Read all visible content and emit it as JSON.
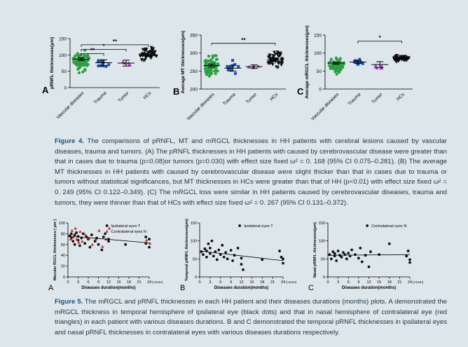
{
  "figure4": {
    "panels": [
      {
        "letter": "A",
        "ylabel": "pRNFL thicknesses(μm)",
        "ylim": [
          0,
          150
        ],
        "yticks": [
          "0",
          "50",
          "100",
          "150"
        ],
        "groups": [
          "Vascular diseases",
          "Trauma",
          "Tumor",
          "HCs"
        ],
        "colors": [
          "#2e9e46",
          "#1a4fa8",
          "#a02fc0",
          "#111111"
        ],
        "means": [
          87,
          76,
          75,
          98
        ],
        "sem": [
          4,
          9,
          9,
          3
        ],
        "counts": [
          70,
          12,
          5,
          50
        ],
        "spread": [
          [
            40,
            125
          ],
          [
            45,
            105
          ],
          [
            62,
            88
          ],
          [
            72,
            135
          ]
        ],
        "sig": [
          {
            "from": 0,
            "to": 3,
            "label": "**",
            "y": 131
          },
          {
            "from": 0,
            "to": 2,
            "label": "*",
            "y": 117
          },
          {
            "from": 0,
            "to": 1,
            "label": "**",
            "y": 104
          }
        ]
      },
      {
        "letter": "B",
        "ylabel": "Average MT thicknesses(μm)",
        "ylim": [
          200,
          350
        ],
        "yticks": [
          "200",
          "250",
          "300",
          "350"
        ],
        "groups": [
          "Vascular diseases",
          "Trauma",
          "Tumor",
          "HCs"
        ],
        "colors": [
          "#2e9e46",
          "#1a4fa8",
          "#a02fc0",
          "#111111"
        ],
        "means": [
          265,
          258,
          262,
          281
        ],
        "sem": [
          4,
          8,
          5,
          3
        ],
        "counts": [
          70,
          12,
          6,
          55
        ],
        "spread": [
          [
            225,
            305
          ],
          [
            235,
            285
          ],
          [
            255,
            270
          ],
          [
            250,
            318
          ]
        ],
        "sig": [
          {
            "from": 0,
            "to": 3,
            "label": "**",
            "y": 327
          }
        ]
      },
      {
        "letter": "C",
        "ylabel": "Average mRGCL thicknesses(μm)",
        "ylim": [
          0,
          150
        ],
        "yticks": [
          "0",
          "50",
          "100",
          "150"
        ],
        "groups": [
          "Vascular diseases",
          "Trauma",
          "Tumor",
          "HCs"
        ],
        "colors": [
          "#2e9e46",
          "#1a4fa8",
          "#a02fc0",
          "#111111"
        ],
        "means": [
          72,
          75,
          68,
          85
        ],
        "sem": [
          3,
          4,
          8,
          2
        ],
        "counts": [
          70,
          12,
          6,
          50
        ],
        "spread": [
          [
            35,
            95
          ],
          [
            60,
            88
          ],
          [
            45,
            82
          ],
          [
            72,
            98
          ]
        ],
        "sig": [
          {
            "from": 1,
            "to": 3,
            "label": "*",
            "y": 133
          }
        ]
      }
    ],
    "caption_label": "Figure 4.",
    "caption_text": "The comparisons of pRNFL, MT and mRGCL thicknesses in HH patients with cerebral lesions caused by vascular diseases, trauma and tumors. (A) The pRNFL thicknesses in HH patients with caused by cerebrovascular disease were greater than that in cases due to trauma (p=0.08)or tumors (p=0.030) with effect size fixed ω² = 0. 168 (95% CI 0.075–0.281). (B) The average MT thicknesses in HH patients with caused by cerebrovascular disease were slight thicker than that in cases due to trauma or tumors without statistical significances, but MT thicknesses in HCs were greater than that of HH (p<0.01) with effect size fixed ω² = 0. 249 (95% CI 0.122–0.349). (C) The mRGCL loss were similar in HH patients caused by cerebrovascular diseases, trauma and tumors, they were thinner than that of HCs with effect size fixed ω² = 0. 267 (95% CI 0.131–0.372)."
  },
  "figure5": {
    "xticks": [
      "0",
      "3",
      "6",
      "9",
      "12",
      "15",
      "18",
      "21",
      "24"
    ],
    "xtick_extra": "(>24m)",
    "xlabel": "Diseases duration(months)",
    "panels": [
      {
        "letter": "A",
        "ylabel": "Macular RGCL thicknesses ( μm )",
        "ylim": [
          0,
          100
        ],
        "yticks": [
          "0",
          "20",
          "40",
          "60",
          "80",
          "100"
        ],
        "legend": [
          "Ipsilateral eyes T",
          "Contralateral eyes N"
        ],
        "series": [
          {
            "name": "Ipsilateral eyes T",
            "color": "#111111",
            "marker": "dot",
            "points": [
              [
                0.5,
                76
              ],
              [
                1,
                72
              ],
              [
                1,
                80
              ],
              [
                1.5,
                66
              ],
              [
                2,
                78
              ],
              [
                2,
                60
              ],
              [
                2.5,
                82
              ],
              [
                3,
                75
              ],
              [
                3,
                68
              ],
              [
                3.5,
                58
              ],
              [
                4,
                72
              ],
              [
                4.5,
                80
              ],
              [
                5,
                62
              ],
              [
                5.5,
                74
              ],
              [
                6,
                70
              ],
              [
                6.5,
                55
              ],
              [
                7,
                78
              ],
              [
                8,
                66
              ],
              [
                8.5,
                72
              ],
              [
                9,
                60
              ],
              [
                10,
                50
              ],
              [
                10.5,
                74
              ],
              [
                11,
                80
              ],
              [
                12,
                70
              ],
              [
                12,
                66
              ],
              [
                17,
                60
              ],
              [
                23,
                74
              ],
              [
                23,
                62
              ],
              [
                24,
                55
              ],
              [
                24,
                70
              ]
            ]
          },
          {
            "name": "Contralateral eyes N",
            "color": "#c0282a",
            "marker": "tri",
            "points": [
              [
                0.8,
                70
              ],
              [
                1.2,
                86
              ],
              [
                1.6,
                74
              ],
              [
                2.2,
                90
              ],
              [
                2.6,
                70
              ],
              [
                3.2,
                64
              ],
              [
                3.6,
                84
              ],
              [
                4.2,
                66
              ],
              [
                5.2,
                78
              ],
              [
                6.2,
                72
              ],
              [
                7.2,
                60
              ],
              [
                8.2,
                70
              ],
              [
                9.2,
                86
              ],
              [
                10.2,
                56
              ],
              [
                11.2,
                70
              ],
              [
                12.2,
                90
              ],
              [
                23.2,
                68
              ],
              [
                24.2,
                62
              ]
            ]
          }
        ],
        "trend": [
          [
            0,
            76
          ],
          [
            24,
            63
          ]
        ]
      },
      {
        "letter": "B",
        "ylabel": "Temporal pRNFL thicknesses(μm)",
        "ylim": [
          0,
          150
        ],
        "yticks": [
          "0",
          "50",
          "100",
          "150"
        ],
        "legend": [
          "Ipsilateral eyes T"
        ],
        "series": [
          {
            "name": "Ipsilateral eyes T",
            "color": "#111111",
            "marker": "dot",
            "points": [
              [
                0.5,
                70
              ],
              [
                1,
                62
              ],
              [
                1.5,
                78
              ],
              [
                2,
                55
              ],
              [
                2,
                72
              ],
              [
                2.5,
                92
              ],
              [
                3,
                80
              ],
              [
                3,
                65
              ],
              [
                3.5,
                100
              ],
              [
                4,
                58
              ],
              [
                4.5,
                70
              ],
              [
                5,
                48
              ],
              [
                5.5,
                75
              ],
              [
                6,
                62
              ],
              [
                6.5,
                88
              ],
              [
                7,
                55
              ],
              [
                7.5,
                68
              ],
              [
                8,
                50
              ],
              [
                9,
                74
              ],
              [
                9.5,
                45
              ],
              [
                10,
                60
              ],
              [
                11,
                80
              ],
              [
                12,
                35
              ],
              [
                12,
                52
              ],
              [
                12.5,
                20
              ],
              [
                18,
                48
              ],
              [
                23,
                72
              ],
              [
                23.5,
                55
              ],
              [
                24,
                38
              ],
              [
                24,
                50
              ]
            ]
          }
        ],
        "trend": [
          [
            0,
            72
          ],
          [
            24,
            45
          ]
        ]
      },
      {
        "letter": "C",
        "ylabel": "Nasal pRNFL thicknesses(μm)",
        "ylim": [
          0,
          150
        ],
        "yticks": [
          "0",
          "50",
          "100",
          "150"
        ],
        "legend": [
          "Contralateral eyes N"
        ],
        "series": [
          {
            "name": "Contralateral eyes N",
            "color": "#111111",
            "marker": "dot",
            "points": [
              [
                0.5,
                62
              ],
              [
                1,
                50
              ],
              [
                1.5,
                70
              ],
              [
                2,
                58
              ],
              [
                2,
                65
              ],
              [
                2.5,
                45
              ],
              [
                3,
                72
              ],
              [
                3.5,
                60
              ],
              [
                4,
                55
              ],
              [
                4.5,
                68
              ],
              [
                5,
                62
              ],
              [
                5.5,
                50
              ],
              [
                6,
                66
              ],
              [
                6.5,
                58
              ],
              [
                7,
                75
              ],
              [
                8,
                62
              ],
              [
                9,
                52
              ],
              [
                9.5,
                80
              ],
              [
                10,
                42
              ],
              [
                11,
                60
              ],
              [
                12,
                28
              ],
              [
                12.5,
                70
              ],
              [
                15,
                62
              ],
              [
                18,
                92
              ],
              [
                23,
                58
              ],
              [
                23.5,
                72
              ],
              [
                24,
                48
              ],
              [
                24,
                40
              ]
            ]
          }
        ],
        "trend": [
          [
            0,
            60
          ],
          [
            24,
            62
          ]
        ]
      }
    ],
    "caption_label": "Figure 5.",
    "caption_text": "The mRGCL and pRNFL thicknesses in each HH patient and their diseases durations (months) plots. A demonstrated the mRGCL thickness in temporal hemisphere of ipsilateral eye (black dots) and that in nasal hemisphere of contralateral eye (red triangles) in each patient with various diseases durations. B and C demonstrated the temporal pRNFL thicknesses in ipsilateral eyes and nasal pRNFL thicknesses in contralateral eyes with various diseases durations respectively."
  }
}
